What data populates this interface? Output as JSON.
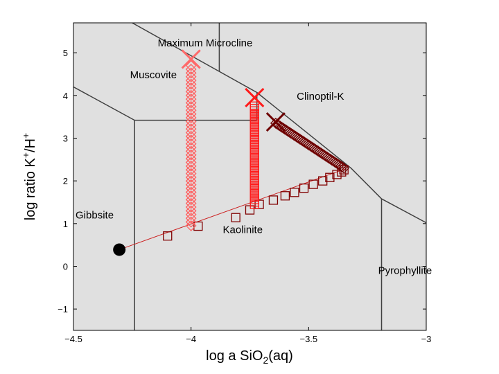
{
  "chart_data": {
    "type": "scatter",
    "title": "",
    "xlabel": {
      "prefix": "log a SiO",
      "sub": "2",
      "suffix": "(aq)"
    },
    "ylabel": {
      "prefix": "log ratio K",
      "sup1": "+",
      "mid": "/H",
      "sup2": "+"
    },
    "xlim": [
      -4.5,
      -3.0
    ],
    "ylim": [
      -1.5,
      5.7
    ],
    "xticks": [
      {
        "value": -4.5,
        "label": "−4.5"
      },
      {
        "value": -4.0,
        "label": "−4"
      },
      {
        "value": -3.5,
        "label": "−3.5"
      },
      {
        "value": -3.0,
        "label": "−3"
      }
    ],
    "yticks": [
      {
        "value": -1,
        "label": "−1"
      },
      {
        "value": 0,
        "label": "0"
      },
      {
        "value": 1,
        "label": "1"
      },
      {
        "value": 2,
        "label": "2"
      },
      {
        "value": 3,
        "label": "3"
      },
      {
        "value": 4,
        "label": "4"
      },
      {
        "value": 5,
        "label": "5"
      }
    ],
    "background_color": "#e0e0e0",
    "boundary_color": "#404040",
    "phase_boundaries": [
      [
        [
          -4.5,
          4.2
        ],
        [
          -4.24,
          3.42
        ]
      ],
      [
        [
          -4.24,
          3.42
        ],
        [
          -3.72,
          3.42
        ]
      ],
      [
        [
          -4.24,
          3.42
        ],
        [
          -4.24,
          -1.5
        ]
      ],
      [
        [
          -4.25,
          5.7
        ],
        [
          -3.72,
          4.07
        ]
      ],
      [
        [
          -3.72,
          4.07
        ],
        [
          -3.32,
          2.3
        ]
      ],
      [
        [
          -3.32,
          2.3
        ],
        [
          -3.19,
          1.58
        ]
      ],
      [
        [
          -3.19,
          1.58
        ],
        [
          -3.0,
          1.02
        ]
      ],
      [
        [
          -3.19,
          1.58
        ],
        [
          -3.19,
          -1.5
        ]
      ],
      [
        [
          -3.72,
          4.07
        ],
        [
          -3.72,
          3.42
        ]
      ],
      [
        [
          -3.88,
          5.7
        ],
        [
          -3.88,
          4.57
        ]
      ]
    ],
    "regions": [
      {
        "label": "Maximum Microcline",
        "x": -3.94,
        "y": 5.15
      },
      {
        "label": "Muscovite",
        "x": -4.16,
        "y": 4.4
      },
      {
        "label": "Clinoptil-K",
        "x": -3.45,
        "y": 3.9
      },
      {
        "label": "Gibbsite",
        "x": -4.41,
        "y": 1.12
      },
      {
        "label": "Kaolinite",
        "x": -3.78,
        "y": 0.78
      },
      {
        "label": "Pyrophyllite",
        "x": -3.09,
        "y": -0.18
      }
    ],
    "series": [
      {
        "marker": "line",
        "color": "#cc2222",
        "points": [
          [
            -4.305,
            0.39
          ],
          [
            -3.35,
            2.27
          ]
        ]
      },
      {
        "marker": "square",
        "color": "#800000",
        "points": [
          [
            -4.1,
            0.71
          ],
          [
            -3.97,
            0.94
          ],
          [
            -3.81,
            1.14
          ],
          [
            -3.75,
            1.32
          ],
          [
            -3.71,
            1.45
          ],
          [
            -3.65,
            1.55
          ],
          [
            -3.6,
            1.65
          ],
          [
            -3.56,
            1.73
          ],
          [
            -3.52,
            1.83
          ],
          [
            -3.48,
            1.92
          ],
          [
            -3.44,
            2.0
          ],
          [
            -3.41,
            2.08
          ],
          [
            -3.38,
            2.15
          ],
          [
            -3.36,
            2.21
          ],
          [
            -3.35,
            2.26
          ]
        ]
      },
      {
        "marker": "diamond",
        "color": "#ff6060",
        "x_const": -4.0,
        "y_from": 0.95,
        "y_to": 4.7,
        "count": 44
      },
      {
        "marker": "square",
        "color": "#ff1a1a",
        "x_const": -3.73,
        "y_from": 1.45,
        "y_to": 3.75,
        "count": 42
      },
      {
        "marker": "diamond",
        "color": "#6e0000",
        "x_from": -3.64,
        "y_from": 3.35,
        "x_to": -3.35,
        "y_to": 2.3,
        "count": 46
      },
      {
        "marker": "x",
        "color": "#ff6a6a",
        "points": [
          [
            -4.0,
            4.85
          ]
        ]
      },
      {
        "marker": "x",
        "color": "#ff1a1a",
        "points": [
          [
            -3.73,
            3.95
          ]
        ]
      },
      {
        "marker": "x",
        "color": "#6e0000",
        "points": [
          [
            -3.64,
            3.38
          ]
        ]
      },
      {
        "marker": "dot",
        "color": "#000000",
        "points": [
          [
            -4.305,
            0.39
          ]
        ]
      }
    ]
  }
}
